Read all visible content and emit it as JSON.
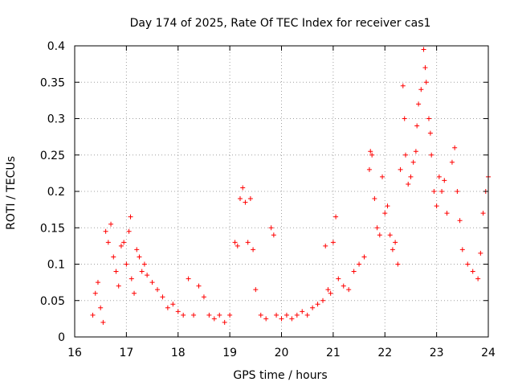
{
  "chart_data": {
    "type": "scatter",
    "title": "Day 174 of 2025, Rate Of TEC Index for receiver cas1",
    "xlabel": "GPS time / hours",
    "ylabel": "ROTI / TECUs",
    "xlim": [
      16,
      24
    ],
    "ylim": [
      0,
      0.4
    ],
    "x_ticks": [
      16,
      17,
      18,
      19,
      20,
      21,
      22,
      23,
      24
    ],
    "y_ticks": [
      0,
      0.05,
      0.1,
      0.15,
      0.2,
      0.25,
      0.3,
      0.35,
      0.4
    ],
    "x_tick_labels": [
      "16",
      "17",
      "18",
      "19",
      "20",
      "21",
      "22",
      "23",
      "24"
    ],
    "y_tick_labels": [
      "0",
      "0.05",
      "0.1",
      "0.15",
      "0.2",
      "0.25",
      "0.3",
      "0.35",
      "0.4"
    ],
    "grid": true,
    "marker": "+",
    "color": "#ff0000",
    "series": [
      {
        "name": "ROTI",
        "points": [
          [
            16.35,
            0.03
          ],
          [
            16.4,
            0.06
          ],
          [
            16.45,
            0.075
          ],
          [
            16.5,
            0.04
          ],
          [
            16.55,
            0.02
          ],
          [
            16.6,
            0.145
          ],
          [
            16.65,
            0.13
          ],
          [
            16.7,
            0.155
          ],
          [
            16.75,
            0.11
          ],
          [
            16.8,
            0.09
          ],
          [
            16.85,
            0.07
          ],
          [
            16.9,
            0.125
          ],
          [
            16.95,
            0.13
          ],
          [
            17.0,
            0.1
          ],
          [
            17.05,
            0.145
          ],
          [
            17.08,
            0.165
          ],
          [
            17.1,
            0.08
          ],
          [
            17.15,
            0.06
          ],
          [
            17.2,
            0.12
          ],
          [
            17.25,
            0.11
          ],
          [
            17.3,
            0.09
          ],
          [
            17.35,
            0.1
          ],
          [
            17.4,
            0.085
          ],
          [
            17.5,
            0.075
          ],
          [
            17.6,
            0.065
          ],
          [
            17.7,
            0.055
          ],
          [
            17.8,
            0.04
          ],
          [
            17.9,
            0.045
          ],
          [
            18.0,
            0.035
          ],
          [
            18.1,
            0.03
          ],
          [
            18.2,
            0.08
          ],
          [
            18.3,
            0.03
          ],
          [
            18.4,
            0.07
          ],
          [
            18.5,
            0.055
          ],
          [
            18.6,
            0.03
          ],
          [
            18.7,
            0.025
          ],
          [
            18.8,
            0.03
          ],
          [
            18.9,
            0.02
          ],
          [
            19.0,
            0.03
          ],
          [
            19.1,
            0.13
          ],
          [
            19.15,
            0.125
          ],
          [
            19.2,
            0.19
          ],
          [
            19.25,
            0.205
          ],
          [
            19.3,
            0.185
          ],
          [
            19.35,
            0.13
          ],
          [
            19.4,
            0.19
          ],
          [
            19.45,
            0.12
          ],
          [
            19.5,
            0.065
          ],
          [
            19.6,
            0.03
          ],
          [
            19.7,
            0.025
          ],
          [
            19.8,
            0.15
          ],
          [
            19.85,
            0.14
          ],
          [
            19.9,
            0.03
          ],
          [
            20.0,
            0.025
          ],
          [
            20.1,
            0.03
          ],
          [
            20.2,
            0.025
          ],
          [
            20.3,
            0.03
          ],
          [
            20.4,
            0.035
          ],
          [
            20.5,
            0.03
          ],
          [
            20.6,
            0.04
          ],
          [
            20.7,
            0.045
          ],
          [
            20.8,
            0.05
          ],
          [
            20.85,
            0.125
          ],
          [
            20.9,
            0.065
          ],
          [
            20.95,
            0.06
          ],
          [
            21.0,
            0.13
          ],
          [
            21.05,
            0.165
          ],
          [
            21.1,
            0.08
          ],
          [
            21.2,
            0.07
          ],
          [
            21.3,
            0.065
          ],
          [
            21.4,
            0.09
          ],
          [
            21.5,
            0.1
          ],
          [
            21.6,
            0.11
          ],
          [
            21.7,
            0.23
          ],
          [
            21.72,
            0.255
          ],
          [
            21.75,
            0.25
          ],
          [
            21.8,
            0.19
          ],
          [
            21.85,
            0.15
          ],
          [
            21.9,
            0.14
          ],
          [
            21.95,
            0.22
          ],
          [
            22.0,
            0.17
          ],
          [
            22.05,
            0.18
          ],
          [
            22.1,
            0.14
          ],
          [
            22.15,
            0.12
          ],
          [
            22.2,
            0.13
          ],
          [
            22.25,
            0.1
          ],
          [
            22.3,
            0.23
          ],
          [
            22.35,
            0.345
          ],
          [
            22.38,
            0.3
          ],
          [
            22.4,
            0.25
          ],
          [
            22.45,
            0.21
          ],
          [
            22.5,
            0.22
          ],
          [
            22.55,
            0.24
          ],
          [
            22.6,
            0.255
          ],
          [
            22.62,
            0.29
          ],
          [
            22.65,
            0.32
          ],
          [
            22.7,
            0.34
          ],
          [
            22.75,
            0.395
          ],
          [
            22.78,
            0.37
          ],
          [
            22.8,
            0.35
          ],
          [
            22.85,
            0.3
          ],
          [
            22.88,
            0.28
          ],
          [
            22.9,
            0.25
          ],
          [
            22.95,
            0.2
          ],
          [
            23.0,
            0.18
          ],
          [
            23.05,
            0.22
          ],
          [
            23.1,
            0.2
          ],
          [
            23.15,
            0.215
          ],
          [
            23.2,
            0.17
          ],
          [
            23.3,
            0.24
          ],
          [
            23.35,
            0.26
          ],
          [
            23.4,
            0.2
          ],
          [
            23.45,
            0.16
          ],
          [
            23.5,
            0.12
          ],
          [
            23.6,
            0.1
          ],
          [
            23.7,
            0.09
          ],
          [
            23.8,
            0.08
          ],
          [
            23.85,
            0.115
          ],
          [
            23.9,
            0.17
          ],
          [
            23.95,
            0.2
          ],
          [
            24.0,
            0.22
          ]
        ]
      }
    ]
  }
}
